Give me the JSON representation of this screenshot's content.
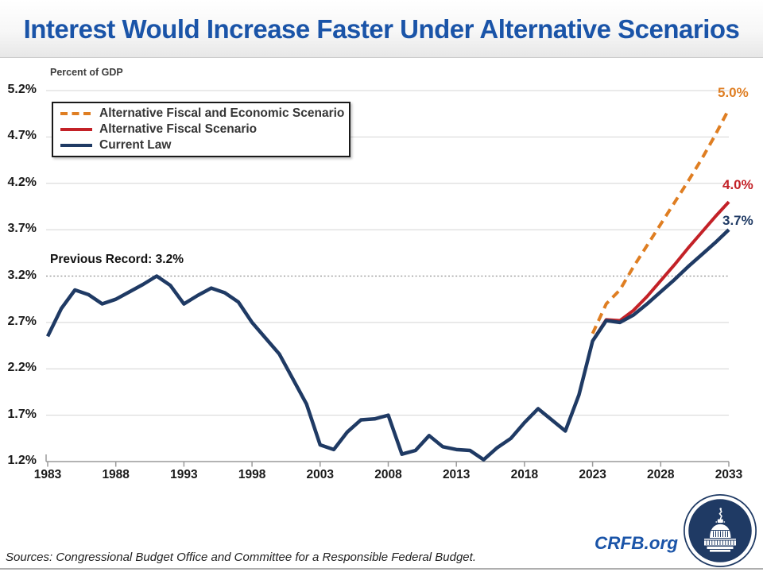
{
  "header": {
    "title": "Interest Would Increase Faster Under Alternative Scenarios"
  },
  "chart": {
    "axis_note": "Percent of GDP",
    "record_label": "Previous Record: 3.2%",
    "end_labels": [
      {
        "text": "5.0%",
        "color": "#df7e22"
      },
      {
        "text": "4.0%",
        "color": "#c32127"
      },
      {
        "text": "3.7%",
        "color": "#1f3a64"
      }
    ]
  },
  "legend": {
    "items": [
      {
        "label": "Alternative Fiscal and Economic Scenario",
        "color": "#df7e22",
        "style": "dashed"
      },
      {
        "label": "Alternative Fiscal Scenario",
        "color": "#c32127",
        "style": "solid"
      },
      {
        "label": "Current Law",
        "color": "#1f3a64",
        "style": "solid"
      }
    ]
  },
  "footer": {
    "sources": "Sources: Congressional Budget Office and Committee for a Responsible Federal Budget.",
    "brand": "CRFB.org"
  },
  "colors": {
    "title_blue": "#1a54a8",
    "navy_line": "#1f3a64",
    "red_line": "#c32127",
    "orange_line": "#df7e22",
    "gridline": "#d4d4d4",
    "axis": "#9a9a9a",
    "record_line": "#909090"
  },
  "chart_data": {
    "type": "line",
    "title": "Interest Would Increase Faster Under Alternative Scenarios",
    "ylabel": "Percent of GDP",
    "xlim": [
      1983,
      2033
    ],
    "ylim": [
      1.2,
      5.2
    ],
    "grid": true,
    "legend_position": "upper-left",
    "yticks": [
      {
        "label": "5.2%",
        "value": 5.2
      },
      {
        "label": "4.7%",
        "value": 4.7
      },
      {
        "label": "4.2%",
        "value": 4.2
      },
      {
        "label": "3.7%",
        "value": 3.7
      },
      {
        "label": "3.2%",
        "value": 3.2
      },
      {
        "label": "2.7%",
        "value": 2.7
      },
      {
        "label": "2.2%",
        "value": 2.2
      },
      {
        "label": "1.7%",
        "value": 1.7
      },
      {
        "label": "1.2%",
        "value": 1.2
      }
    ],
    "xticks": [
      {
        "label": "1983",
        "value": 1983
      },
      {
        "label": "1988",
        "value": 1988
      },
      {
        "label": "1993",
        "value": 1993
      },
      {
        "label": "1998",
        "value": 1998
      },
      {
        "label": "2003",
        "value": 2003
      },
      {
        "label": "2008",
        "value": 2008
      },
      {
        "label": "2013",
        "value": 2013
      },
      {
        "label": "2018",
        "value": 2018
      },
      {
        "label": "2023",
        "value": 2023
      },
      {
        "label": "2028",
        "value": 2028
      },
      {
        "label": "2033",
        "value": 2033
      }
    ],
    "annotations": [
      {
        "text": "Previous Record: 3.2%",
        "y": 3.2,
        "style": "dotted-gray-line"
      }
    ],
    "series": [
      {
        "name": "Alternative Fiscal and Economic Scenario",
        "color": "#df7e22",
        "dash": true,
        "width": 4,
        "start_year": 2023,
        "end_label": "5.0%",
        "values": [
          2.58,
          2.9,
          3.05,
          3.3,
          3.53,
          3.76,
          3.99,
          4.22,
          4.46,
          4.72,
          5.0
        ]
      },
      {
        "name": "Alternative Fiscal Scenario",
        "color": "#c32127",
        "dash": false,
        "width": 4,
        "start_year": 2023,
        "end_label": "4.0%",
        "values": [
          2.5,
          2.73,
          2.72,
          2.83,
          2.98,
          3.15,
          3.32,
          3.5,
          3.67,
          3.84,
          4.0
        ]
      },
      {
        "name": "Current Law",
        "color": "#1f3a64",
        "dash": false,
        "width": 4.5,
        "start_year": 1983,
        "end_label": "3.7%",
        "values": [
          2.55,
          2.85,
          3.05,
          3.0,
          2.9,
          2.95,
          3.03,
          3.11,
          3.2,
          3.1,
          2.9,
          2.99,
          3.07,
          3.02,
          2.92,
          2.7,
          2.53,
          2.36,
          2.09,
          1.82,
          1.38,
          1.33,
          1.52,
          1.65,
          1.66,
          1.7,
          1.28,
          1.32,
          1.48,
          1.36,
          1.33,
          1.32,
          1.22,
          1.35,
          1.45,
          1.62,
          1.77,
          1.65,
          1.53,
          1.92,
          2.5,
          2.72,
          2.7,
          2.78,
          2.9,
          3.03,
          3.16,
          3.3,
          3.43,
          3.56,
          3.7
        ]
      }
    ]
  }
}
